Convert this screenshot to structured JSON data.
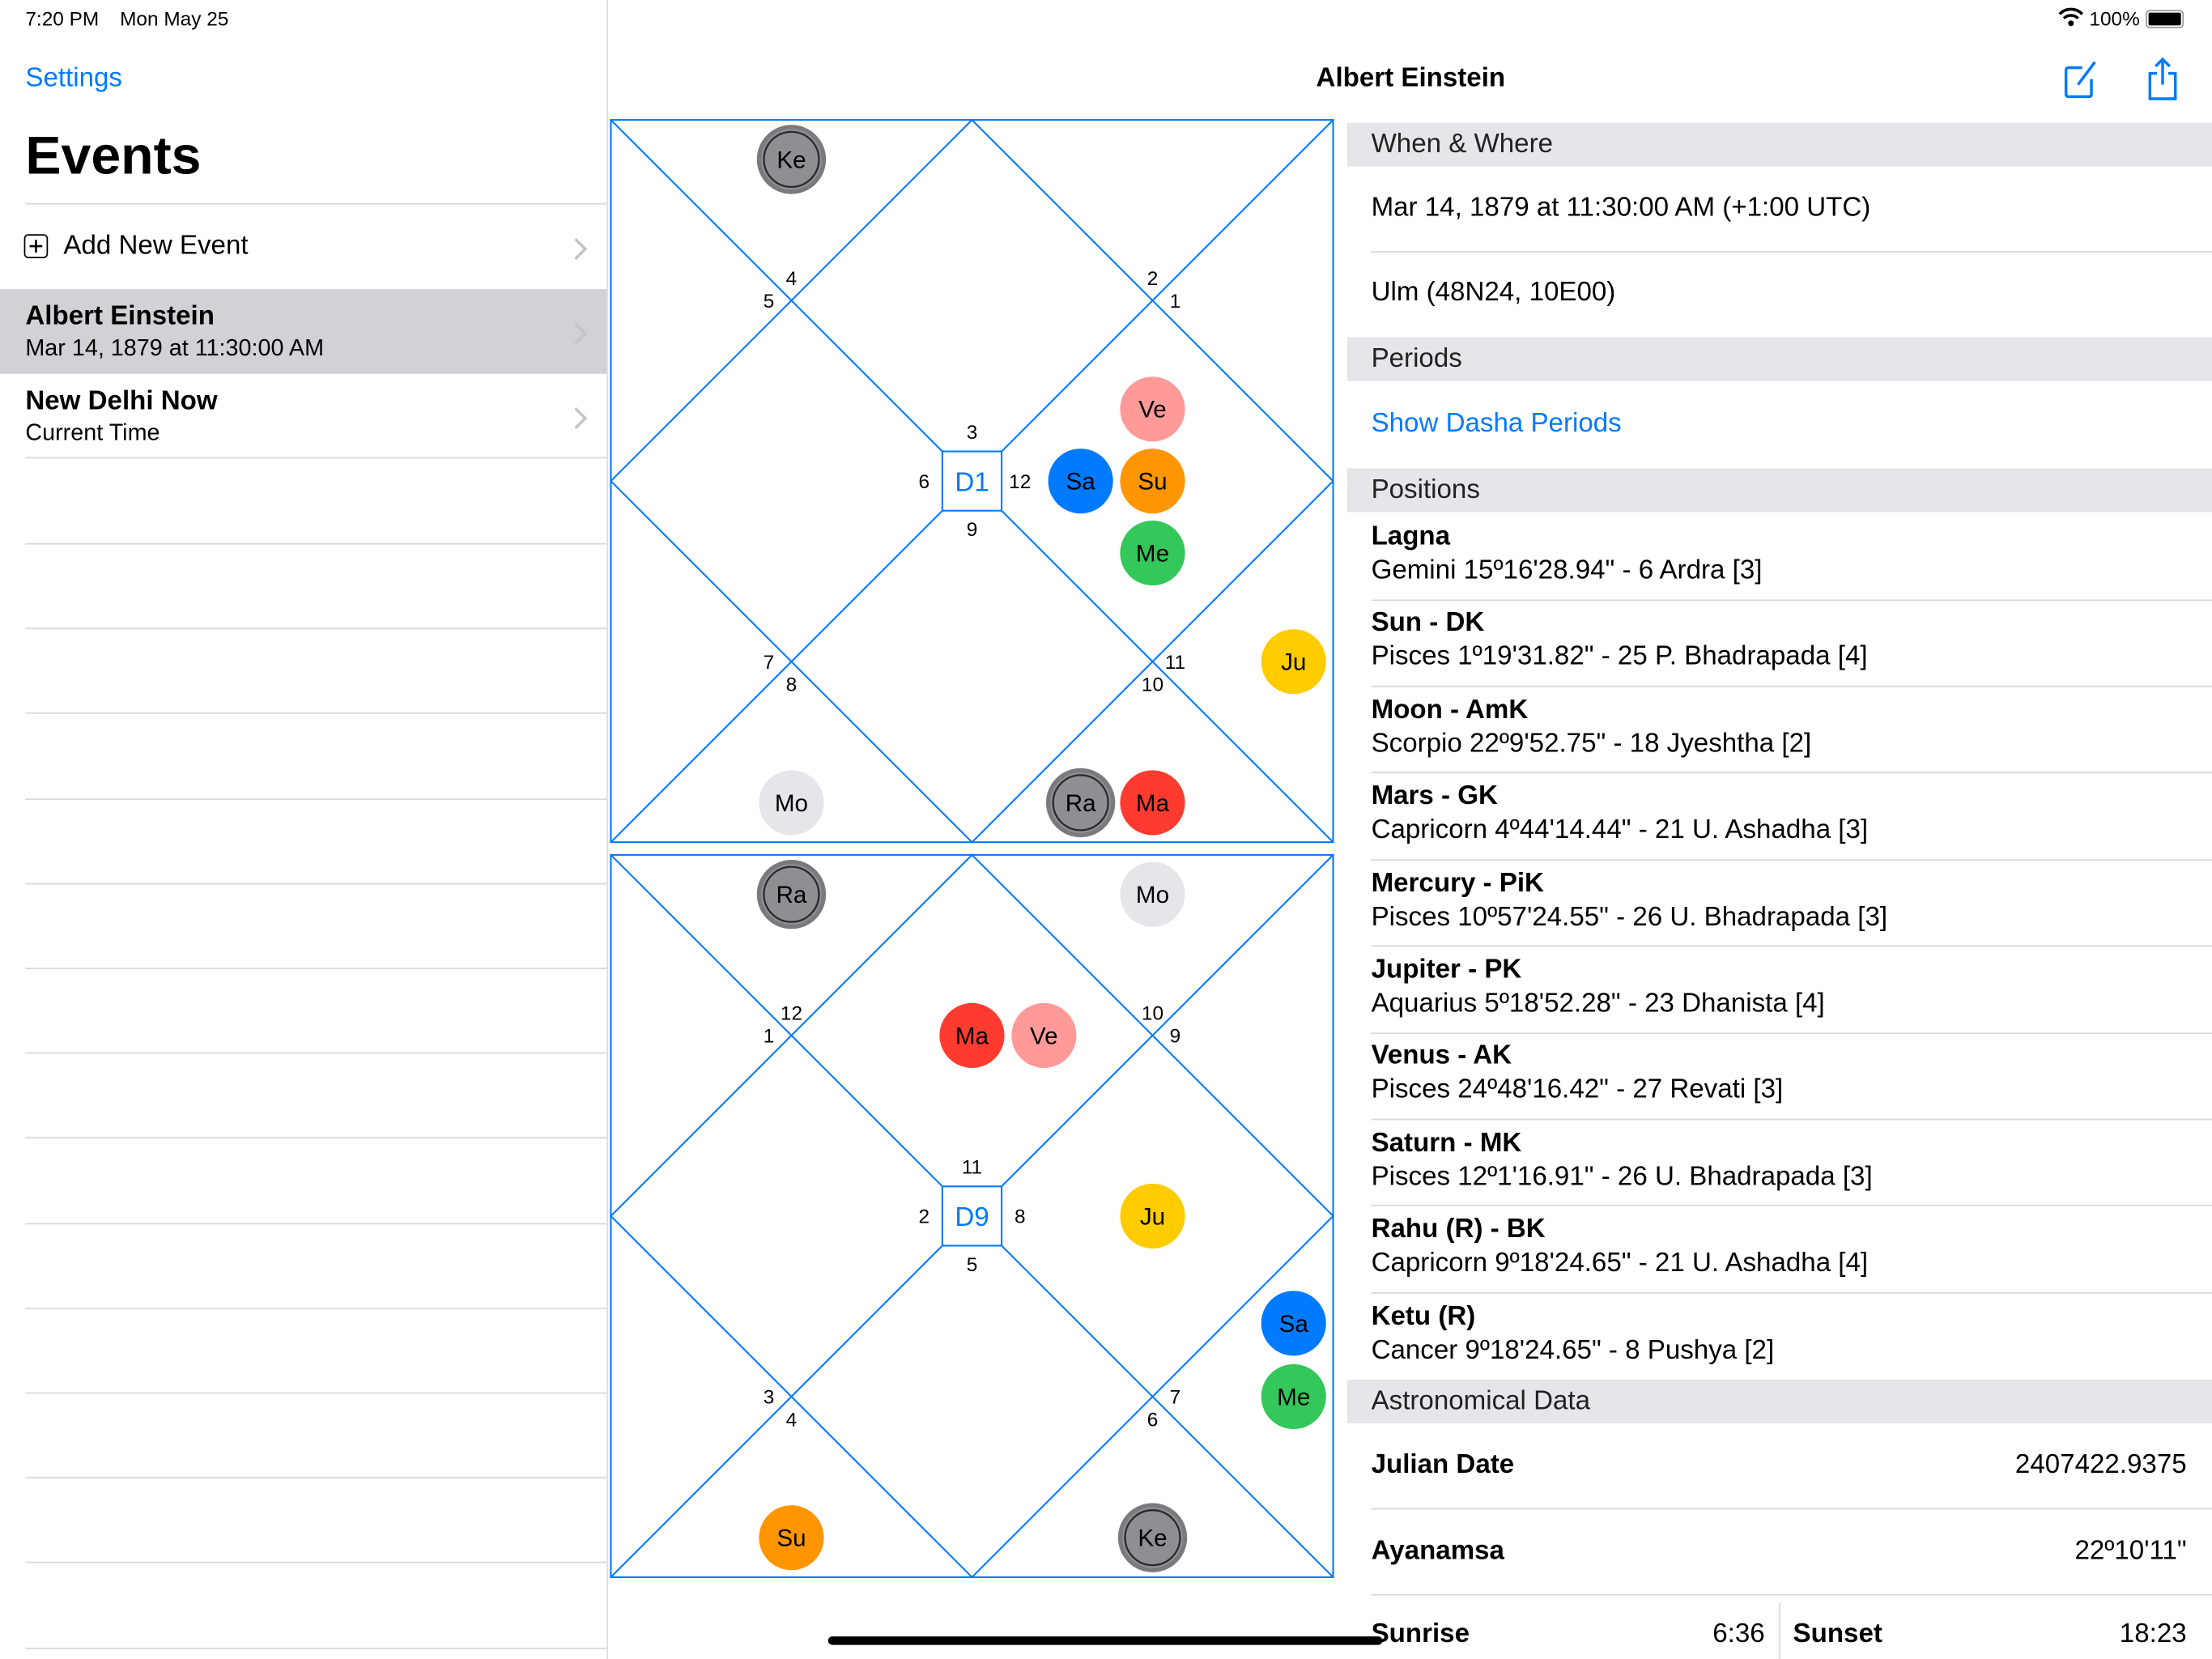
{
  "status_bar": {
    "time": "7:20 PM",
    "date": "Mon May 25",
    "battery": "100%"
  },
  "sidebar": {
    "back_label": "Settings",
    "title": "Events",
    "add_label": "Add New Event",
    "events": [
      {
        "name": "Albert Einstein",
        "subtitle": "Mar 14, 1879 at 11:30:00 AM",
        "selected": true
      },
      {
        "name": "New Delhi Now",
        "subtitle": "Current Time",
        "selected": false
      }
    ]
  },
  "detail": {
    "title": "Albert Einstein",
    "when_where": {
      "header": "When & Where",
      "datetime": "Mar 14, 1879 at 11:30:00 AM (+1:00 UTC)",
      "place": "Ulm (48N24, 10E00)"
    },
    "periods": {
      "header": "Periods",
      "link": "Show Dasha Periods"
    },
    "positions": {
      "header": "Positions",
      "items": [
        {
          "title": "Lagna",
          "value": "Gemini 15º16'28.94\" - 6 Ardra [3]"
        },
        {
          "title": "Sun - DK",
          "value": "Pisces 1º19'31.82\" - 25 P. Bhadrapada [4]"
        },
        {
          "title": "Moon - AmK",
          "value": "Scorpio 22º9'52.75\" - 18 Jyeshtha [2]"
        },
        {
          "title": "Mars - GK",
          "value": "Capricorn 4º44'14.44\" - 21 U. Ashadha [3]"
        },
        {
          "title": "Mercury - PiK",
          "value": "Pisces 10º57'24.55\" - 26 U. Bhadrapada [3]"
        },
        {
          "title": "Jupiter - PK",
          "value": "Aquarius 5º18'52.28\" - 23 Dhanista [4]"
        },
        {
          "title": "Venus - AK",
          "value": "Pisces 24º48'16.42\" - 27 Revati [3]"
        },
        {
          "title": "Saturn - MK",
          "value": "Pisces 12º1'16.91\" - 26 U. Bhadrapada [3]"
        },
        {
          "title": "Rahu (R) - BK",
          "value": "Capricorn 9º18'24.65\" - 21 U. Ashadha [4]"
        },
        {
          "title": "Ketu (R)",
          "value": "Cancer 9º18'24.65\" - 8 Pushya [2]"
        }
      ]
    },
    "astro": {
      "header": "Astronomical Data",
      "julian_label": "Julian Date",
      "julian_value": "2407422.9375",
      "ayanamsa_label": "Ayanamsa",
      "ayanamsa_value": "22º10'11\"",
      "sunrise_label": "Sunrise",
      "sunrise_value": "6:36",
      "sunset_label": "Sunset",
      "sunset_value": "18:23"
    }
  },
  "colors": {
    "accent": "#007aff",
    "Ke": "#8e8e93",
    "Ra": "#8e8e93",
    "Mo": "#e5e5ea",
    "Ve": "#ff9a99",
    "Su": "#ff9500",
    "Sa": "#007aff",
    "Me": "#34c759",
    "Ju": "#ffcc00",
    "Ma": "#ff3b30"
  },
  "charts": [
    {
      "label": "D1",
      "house_signs": [
        "3",
        "4",
        "5",
        "6",
        "7",
        "8",
        "9",
        "10",
        "11",
        "12",
        "1",
        "2"
      ],
      "planets": [
        {
          "abbr": "Ke",
          "house": 2
        },
        {
          "abbr": "Ve",
          "house": 10
        },
        {
          "abbr": "Sa",
          "house": 10
        },
        {
          "abbr": "Su",
          "house": 10
        },
        {
          "abbr": "Me",
          "house": 10
        },
        {
          "abbr": "Ju",
          "house": 9
        },
        {
          "abbr": "Mo",
          "house": 6
        },
        {
          "abbr": "Ra",
          "house": 8
        },
        {
          "abbr": "Ma",
          "house": 8
        }
      ]
    },
    {
      "label": "D9",
      "house_signs": [
        "11",
        "12",
        "1",
        "2",
        "3",
        "4",
        "5",
        "6",
        "7",
        "8",
        "9",
        "10"
      ],
      "planets": [
        {
          "abbr": "Ra",
          "house": 2
        },
        {
          "abbr": "Mo",
          "house": 12
        },
        {
          "abbr": "Ma",
          "house": 1
        },
        {
          "abbr": "Ve",
          "house": 1
        },
        {
          "abbr": "Ju",
          "house": 10
        },
        {
          "abbr": "Sa",
          "house": 9
        },
        {
          "abbr": "Me",
          "house": 9
        },
        {
          "abbr": "Su",
          "house": 6
        },
        {
          "abbr": "Ke",
          "house": 8
        }
      ]
    }
  ]
}
